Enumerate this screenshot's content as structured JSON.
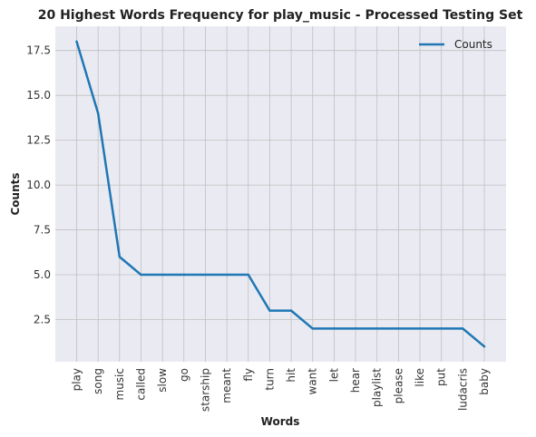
{
  "chart_data": {
    "type": "line",
    "title": "20 Highest Words Frequency for play_music - Processed Testing Set",
    "xlabel": "Words",
    "ylabel": "Counts",
    "categories": [
      "play",
      "song",
      "music",
      "called",
      "slow",
      "go",
      "starship",
      "meant",
      "fly",
      "turn",
      "hit",
      "want",
      "let",
      "hear",
      "playlist",
      "please",
      "like",
      "put",
      "ludacris",
      "baby"
    ],
    "series": [
      {
        "name": "Counts",
        "values": [
          18,
          14,
          6,
          5,
          5,
          5,
          5,
          5,
          5,
          3,
          3,
          2,
          2,
          2,
          2,
          2,
          2,
          2,
          2,
          1
        ]
      }
    ],
    "ylim": [
      0.15,
      18.85
    ],
    "yticks": [
      "2.5",
      "5.0",
      "7.5",
      "10.0",
      "12.5",
      "15.0",
      "17.5"
    ],
    "grid": true,
    "legend_position": "top-right",
    "colors": {
      "line": "#1f77b4",
      "plot_background": "#eaeaf2",
      "grid": "#c0c0c0"
    }
  }
}
